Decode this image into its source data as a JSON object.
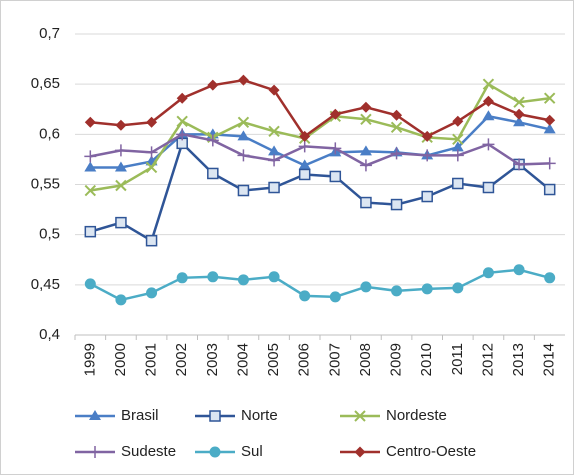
{
  "chart_data": {
    "type": "line",
    "categories": [
      "1999",
      "2000",
      "2001",
      "2002",
      "2003",
      "2004",
      "2005",
      "2006",
      "2007",
      "2008",
      "2009",
      "2010",
      "2011",
      "2012",
      "2013",
      "2014"
    ],
    "ylim": [
      0.4,
      0.7
    ],
    "yticks": [
      {
        "value": 0.4,
        "label": "0,4"
      },
      {
        "value": 0.45,
        "label": "0,45"
      },
      {
        "value": 0.5,
        "label": "0,5"
      },
      {
        "value": 0.55,
        "label": "0,55"
      },
      {
        "value": 0.6,
        "label": "0,6"
      },
      {
        "value": 0.65,
        "label": "0,65"
      },
      {
        "value": 0.7,
        "label": "0,7"
      }
    ],
    "grid": true,
    "legend": "bottom",
    "series": [
      {
        "name": "Brasil",
        "color": "#4a7ec6",
        "marker": "triangle",
        "values": [
          0.567,
          0.567,
          0.573,
          0.6,
          0.6,
          0.598,
          0.583,
          0.569,
          0.582,
          0.583,
          0.582,
          0.579,
          0.587,
          0.618,
          0.612,
          0.605
        ]
      },
      {
        "name": "Norte",
        "color": "#2f5597",
        "marker": "square",
        "values": [
          0.503,
          0.512,
          0.494,
          0.591,
          0.561,
          0.544,
          0.547,
          0.56,
          0.558,
          0.532,
          0.53,
          0.538,
          0.551,
          0.547,
          0.57,
          0.545
        ]
      },
      {
        "name": "Nordeste",
        "color": "#9bbb59",
        "marker": "cross",
        "values": [
          0.544,
          0.549,
          0.567,
          0.613,
          0.597,
          0.612,
          0.603,
          0.596,
          0.618,
          0.615,
          0.607,
          0.597,
          0.595,
          0.65,
          0.632,
          0.636
        ]
      },
      {
        "name": "Sudeste",
        "color": "#8064a2",
        "marker": "plus",
        "values": [
          0.578,
          0.584,
          0.582,
          0.6,
          0.594,
          0.579,
          0.574,
          0.588,
          0.586,
          0.569,
          0.581,
          0.579,
          0.579,
          0.59,
          0.57,
          0.571
        ]
      },
      {
        "name": "Sul",
        "color": "#4bacc6",
        "marker": "circle",
        "values": [
          0.451,
          0.435,
          0.442,
          0.457,
          0.458,
          0.455,
          0.458,
          0.439,
          0.438,
          0.448,
          0.444,
          0.446,
          0.447,
          0.462,
          0.465,
          0.457
        ]
      },
      {
        "name": "Centro-Oeste",
        "color": "#a0302c",
        "marker": "diamond",
        "values": [
          0.612,
          0.609,
          0.612,
          0.636,
          0.649,
          0.654,
          0.644,
          0.598,
          0.62,
          0.627,
          0.619,
          0.598,
          0.613,
          0.633,
          0.62,
          0.614
        ]
      }
    ]
  }
}
